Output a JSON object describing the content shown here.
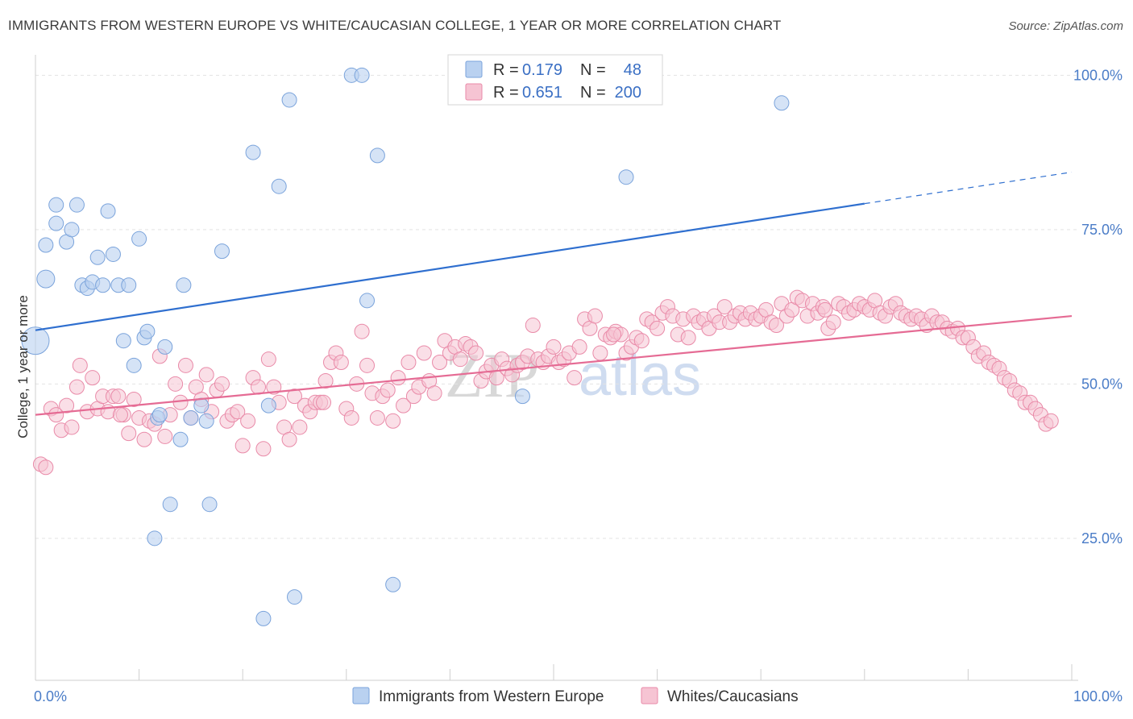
{
  "header": {
    "title": "IMMIGRANTS FROM WESTERN EUROPE VS WHITE/CAUCASIAN COLLEGE, 1 YEAR OR MORE CORRELATION CHART",
    "source": "Source: ZipAtlas.com"
  },
  "watermark": {
    "part1": "ZIP",
    "part2": "atlas"
  },
  "chart_data": {
    "type": "scatter",
    "title": "IMMIGRANTS FROM WESTERN EUROPE VS WHITE/CAUCASIAN COLLEGE, 1 YEAR OR MORE CORRELATION CHART",
    "xlabel": "",
    "ylabel": "College, 1 year or more",
    "xlim": [
      0,
      100
    ],
    "ylim": [
      2,
      102
    ],
    "x_tick_labels": {
      "left": "0.0%",
      "right": "100.0%"
    },
    "y_ticks": [
      {
        "value": 25,
        "label": "25.0%"
      },
      {
        "value": 50,
        "label": "50.0%"
      },
      {
        "value": 75,
        "label": "75.0%"
      },
      {
        "value": 100,
        "label": "100.0%"
      }
    ],
    "colors": {
      "blue_fill": "#b9d1f0",
      "blue_stroke": "#7aa3db",
      "blue_line": "#2f6fcf",
      "pink_fill": "#f6c4d3",
      "pink_stroke": "#e98aa8",
      "pink_line": "#e56b94",
      "tick_label": "#4a7cc7"
    },
    "legend": {
      "blue": {
        "r_label": "R =",
        "r_value": "0.179",
        "n_label": "N =",
        "n_value": "48"
      },
      "pink": {
        "r_label": "R =",
        "r_value": "0.651",
        "n_label": "N =",
        "n_value": "200"
      }
    },
    "series": [
      {
        "name": "Immigrants from Western Europe",
        "color": "blue",
        "trend": {
          "x0": 0,
          "y0": 58.7,
          "x1": 80,
          "y1": 79.2,
          "dash_x1": 100,
          "dash_y1": 84.3
        },
        "points": [
          [
            0,
            57,
            3
          ],
          [
            1,
            67,
            2
          ],
          [
            1,
            72.5,
            1
          ],
          [
            2,
            76,
            1
          ],
          [
            2,
            79,
            1
          ],
          [
            3,
            73,
            1
          ],
          [
            3.5,
            75,
            1
          ],
          [
            4,
            79,
            1
          ],
          [
            4.5,
            66,
            1
          ],
          [
            5,
            65.5,
            1
          ],
          [
            5.5,
            66.5,
            1
          ],
          [
            6,
            70.5,
            1
          ],
          [
            6.5,
            66,
            1
          ],
          [
            7,
            78,
            1
          ],
          [
            7.5,
            71,
            1
          ],
          [
            8,
            66,
            1
          ],
          [
            8.5,
            57,
            1
          ],
          [
            9,
            66,
            1
          ],
          [
            9.5,
            53,
            1
          ],
          [
            10,
            73.5,
            1
          ],
          [
            10.5,
            57.5,
            1
          ],
          [
            10.8,
            58.5,
            1
          ],
          [
            11.5,
            25,
            1
          ],
          [
            11.8,
            44.5,
            1
          ],
          [
            12,
            45,
            1
          ],
          [
            12.5,
            56,
            1
          ],
          [
            13,
            30.5,
            1
          ],
          [
            14,
            41,
            1
          ],
          [
            14.3,
            66,
            1
          ],
          [
            15,
            44.5,
            1
          ],
          [
            16,
            46.5,
            1
          ],
          [
            16.5,
            44,
            1
          ],
          [
            16.8,
            30.5,
            1
          ],
          [
            18,
            71.5,
            1
          ],
          [
            21,
            87.5,
            1
          ],
          [
            22,
            12,
            1
          ],
          [
            22.5,
            46.5,
            1
          ],
          [
            23.5,
            82,
            1
          ],
          [
            24.5,
            96,
            1
          ],
          [
            25,
            15.5,
            1
          ],
          [
            30.5,
            100,
            1
          ],
          [
            31.5,
            100,
            1
          ],
          [
            32,
            63.5,
            1
          ],
          [
            33,
            87,
            1
          ],
          [
            34.5,
            17.5,
            1
          ],
          [
            47,
            48,
            1
          ],
          [
            57,
            83.5,
            1
          ],
          [
            72,
            95.5,
            1
          ]
        ]
      },
      {
        "name": "Whites/Caucasians",
        "color": "pink",
        "trend": {
          "x0": 0,
          "y0": 45,
          "x1": 100,
          "y1": 61
        },
        "points": [
          [
            0.5,
            37
          ],
          [
            1,
            36.5
          ],
          [
            1.5,
            46
          ],
          [
            2,
            45
          ],
          [
            2.5,
            42.5
          ],
          [
            3,
            46.5
          ],
          [
            3.5,
            43
          ],
          [
            4,
            49.5
          ],
          [
            4.3,
            53
          ],
          [
            5,
            45.5
          ],
          [
            5.5,
            51
          ],
          [
            6,
            46
          ],
          [
            6.5,
            48
          ],
          [
            7,
            45.5
          ],
          [
            7.5,
            48
          ],
          [
            8,
            48
          ],
          [
            8.5,
            45
          ],
          [
            9,
            42
          ],
          [
            9.5,
            47.5
          ],
          [
            10,
            44.5
          ],
          [
            10.5,
            41
          ],
          [
            11,
            44
          ],
          [
            11.5,
            43.5
          ],
          [
            12,
            54.5
          ],
          [
            12.5,
            41.5
          ],
          [
            13,
            45
          ],
          [
            13.5,
            50
          ],
          [
            14,
            47
          ],
          [
            14.5,
            53
          ],
          [
            15,
            44.5
          ],
          [
            15.5,
            49.5
          ],
          [
            16,
            47.5
          ],
          [
            16.5,
            51.5
          ],
          [
            17,
            45.5
          ],
          [
            17.5,
            49
          ],
          [
            18,
            50
          ],
          [
            18.5,
            44
          ],
          [
            19,
            45
          ],
          [
            19.5,
            45.5
          ],
          [
            20,
            40
          ],
          [
            20.5,
            44
          ],
          [
            21,
            51
          ],
          [
            21.5,
            49.5
          ],
          [
            22,
            39.5
          ],
          [
            22.5,
            54
          ],
          [
            23,
            49.5
          ],
          [
            23.5,
            47
          ],
          [
            24,
            43
          ],
          [
            24.5,
            41
          ],
          [
            25,
            48
          ],
          [
            25.5,
            43
          ],
          [
            26,
            46.5
          ],
          [
            26.5,
            45.5
          ],
          [
            27,
            47
          ],
          [
            27.5,
            47
          ],
          [
            28,
            50.5
          ],
          [
            28.5,
            53.5
          ],
          [
            29,
            55
          ],
          [
            29.5,
            53.5
          ],
          [
            30,
            46
          ],
          [
            30.5,
            44.5
          ],
          [
            31,
            50
          ],
          [
            31.5,
            58.5
          ],
          [
            32,
            53
          ],
          [
            32.5,
            48.5
          ],
          [
            33,
            44.5
          ],
          [
            33.5,
            48
          ],
          [
            34,
            49
          ],
          [
            34.5,
            44
          ],
          [
            35,
            51
          ],
          [
            35.5,
            46.5
          ],
          [
            36,
            53.5
          ],
          [
            36.5,
            48
          ],
          [
            37,
            49.5
          ],
          [
            37.5,
            55
          ],
          [
            38,
            50.5
          ],
          [
            38.5,
            48.5
          ],
          [
            39,
            53.5
          ],
          [
            39.5,
            57
          ],
          [
            40,
            55
          ],
          [
            40.5,
            56
          ],
          [
            41,
            54
          ],
          [
            41.5,
            56.5
          ],
          [
            42,
            56
          ],
          [
            42.5,
            55
          ],
          [
            43,
            50.5
          ],
          [
            43.5,
            52
          ],
          [
            44,
            53
          ],
          [
            44.5,
            51
          ],
          [
            45,
            54
          ],
          [
            45.5,
            52.5
          ],
          [
            46,
            51.5
          ],
          [
            46.5,
            53
          ],
          [
            47,
            53.5
          ],
          [
            47.5,
            54.5
          ],
          [
            48,
            59.5
          ],
          [
            48.5,
            54
          ],
          [
            49,
            53.5
          ],
          [
            49.5,
            54.5
          ],
          [
            50,
            56
          ],
          [
            50.5,
            53.5
          ],
          [
            51,
            54
          ],
          [
            51.5,
            55
          ],
          [
            52,
            51
          ],
          [
            52.5,
            56
          ],
          [
            53,
            60.5
          ],
          [
            53.5,
            59
          ],
          [
            54,
            61
          ],
          [
            54.5,
            55
          ],
          [
            55,
            58
          ],
          [
            55.5,
            57.5
          ],
          [
            56,
            58.5
          ],
          [
            56.5,
            58
          ],
          [
            57,
            55
          ],
          [
            57.5,
            56
          ],
          [
            58,
            57.5
          ],
          [
            58.5,
            57
          ],
          [
            59,
            60.5
          ],
          [
            59.5,
            60
          ],
          [
            60,
            59
          ],
          [
            60.5,
            61.5
          ],
          [
            61,
            62.5
          ],
          [
            61.5,
            61
          ],
          [
            62,
            58
          ],
          [
            62.5,
            60.5
          ],
          [
            63,
            57.5
          ],
          [
            63.5,
            61
          ],
          [
            64,
            60
          ],
          [
            64.5,
            60.5
          ],
          [
            65,
            59
          ],
          [
            65.5,
            61
          ],
          [
            66,
            60
          ],
          [
            66.5,
            62.5
          ],
          [
            67,
            60
          ],
          [
            67.5,
            61
          ],
          [
            68,
            61.5
          ],
          [
            68.5,
            60.5
          ],
          [
            69,
            61.5
          ],
          [
            69.5,
            60.5
          ],
          [
            70,
            61
          ],
          [
            70.5,
            62
          ],
          [
            71,
            60
          ],
          [
            71.5,
            59.5
          ],
          [
            72,
            63
          ],
          [
            72.5,
            61
          ],
          [
            73,
            62
          ],
          [
            73.5,
            64
          ],
          [
            74,
            63.5
          ],
          [
            74.5,
            61
          ],
          [
            75,
            63
          ],
          [
            75.5,
            61.5
          ],
          [
            76,
            62.5
          ],
          [
            76.5,
            59
          ],
          [
            77,
            60
          ],
          [
            77.5,
            63
          ],
          [
            78,
            62.5
          ],
          [
            78.5,
            61.5
          ],
          [
            79,
            62
          ],
          [
            79.5,
            63
          ],
          [
            80,
            62.5
          ],
          [
            80.5,
            62
          ],
          [
            81,
            63.5
          ],
          [
            81.5,
            61.5
          ],
          [
            82,
            61
          ],
          [
            82.5,
            62.5
          ],
          [
            83,
            63
          ],
          [
            83.5,
            61.5
          ],
          [
            84,
            61
          ],
          [
            84.5,
            60.5
          ],
          [
            85,
            61
          ],
          [
            85.5,
            60.5
          ],
          [
            86,
            59.5
          ],
          [
            86.5,
            61
          ],
          [
            87,
            60
          ],
          [
            87.5,
            60
          ],
          [
            88,
            59
          ],
          [
            88.5,
            58.5
          ],
          [
            89,
            59
          ],
          [
            89.5,
            57.5
          ],
          [
            90,
            57.5
          ],
          [
            90.5,
            56
          ],
          [
            91,
            54.5
          ],
          [
            91.5,
            55
          ],
          [
            92,
            53.5
          ],
          [
            92.5,
            53
          ],
          [
            93,
            52.5
          ],
          [
            93.5,
            51
          ],
          [
            94,
            50.5
          ],
          [
            94.5,
            49
          ],
          [
            95,
            48.5
          ],
          [
            95.5,
            47
          ],
          [
            96,
            47
          ],
          [
            96.5,
            46
          ],
          [
            97,
            45
          ],
          [
            97.5,
            43.5
          ],
          [
            98,
            44
          ],
          [
            8.2,
            45
          ],
          [
            27.8,
            47
          ],
          [
            55.8,
            58
          ],
          [
            76.2,
            62
          ]
        ]
      }
    ]
  },
  "bottom_legend": {
    "items": [
      {
        "label": "Immigrants from Western Europe"
      },
      {
        "label": "Whites/Caucasians"
      }
    ]
  }
}
